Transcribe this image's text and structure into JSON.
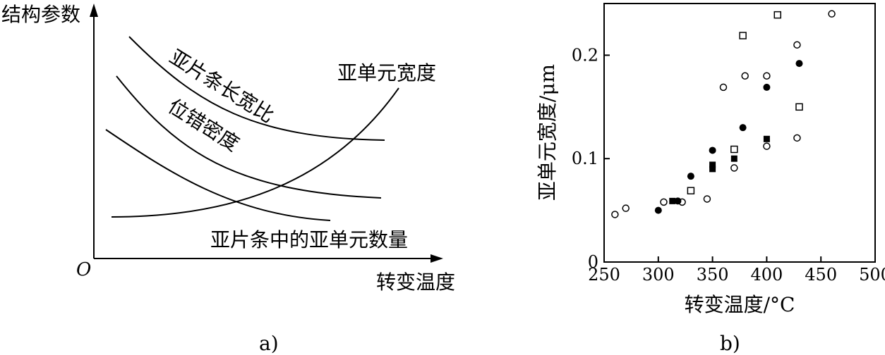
{
  "chart_data": [
    {
      "type": "line",
      "panel_label": "a)",
      "ylabel": "结构参数",
      "xlabel": "转变温度",
      "origin_label": "O",
      "grid": false,
      "series": [
        {
          "name": "亚片条长宽比",
          "trend": "decreasing"
        },
        {
          "name": "位错密度",
          "trend": "decreasing"
        },
        {
          "name": "亚片条中的亚单元数量",
          "trend": "decreasing"
        },
        {
          "name": "亚单元宽度",
          "trend": "increasing"
        }
      ]
    },
    {
      "type": "scatter",
      "panel_label": "b)",
      "xlabel": "转变温度/°C",
      "ylabel": "亚单元宽度/μm",
      "xlim": [
        250,
        500
      ],
      "ylim": [
        0,
        0.25
      ],
      "xticks": [
        250,
        300,
        350,
        400,
        450,
        500
      ],
      "yticks": [
        {
          "value": 0,
          "label": "0"
        },
        {
          "value": 0.1,
          "label": "0.1"
        },
        {
          "value": 0.2,
          "label": "0.2"
        }
      ],
      "grid": false,
      "series": [
        {
          "marker": "open-circle",
          "points": [
            [
              260,
              0.046
            ],
            [
              270,
              0.052
            ],
            [
              305,
              0.058
            ],
            [
              322,
              0.058
            ],
            [
              345,
              0.061
            ],
            [
              360,
              0.169
            ],
            [
              370,
              0.091
            ],
            [
              380,
              0.18
            ],
            [
              400,
              0.112
            ],
            [
              400,
              0.18
            ],
            [
              428,
              0.12
            ],
            [
              428,
              0.21
            ],
            [
              460,
              0.24
            ]
          ]
        },
        {
          "marker": "filled-circle",
          "points": [
            [
              300,
              0.05
            ],
            [
              318,
              0.059
            ],
            [
              330,
              0.083
            ],
            [
              350,
              0.108
            ],
            [
              378,
              0.13
            ],
            [
              400,
              0.169
            ],
            [
              430,
              0.192
            ]
          ]
        },
        {
          "marker": "open-square",
          "points": [
            [
              330,
              0.069
            ],
            [
              370,
              0.109
            ],
            [
              378,
              0.219
            ],
            [
              410,
              0.239
            ],
            [
              430,
              0.15
            ]
          ]
        },
        {
          "marker": "filled-square",
          "points": [
            [
              313,
              0.059
            ],
            [
              350,
              0.09
            ],
            [
              350,
              0.094
            ],
            [
              370,
              0.1
            ],
            [
              400,
              0.119
            ]
          ]
        }
      ]
    }
  ]
}
